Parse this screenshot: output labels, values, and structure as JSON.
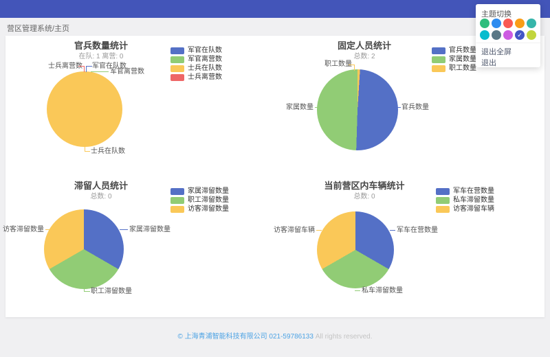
{
  "header": {
    "color": "#4355b9"
  },
  "breadcrumb": "营区管理系统/主页",
  "theme_panel": {
    "title": "主题切换",
    "colors": [
      "#2ebd7d",
      "#2e8cf0",
      "#f95a54",
      "#fa9d16",
      "#36b5aa",
      "#0abcce",
      "#5a7886",
      "#cd5ce2",
      "#4356c6",
      "#c2d53c"
    ],
    "selected_index": 8,
    "check_icon": "✓",
    "exit_fullscreen_label": "退出全屏",
    "logout_label": "退出"
  },
  "palette": {
    "blue": "#5470c6",
    "green": "#91cc75",
    "yellow": "#fac858",
    "red": "#ee6666"
  },
  "chart_data": [
    {
      "type": "pie",
      "title": "官兵数量统计",
      "subtitle": "在队: 1 离营: 0",
      "legend_position": "right",
      "series": [
        {
          "name": "军官在队数",
          "value": 0,
          "color": "#5470c6"
        },
        {
          "name": "军官离营数",
          "value": 0,
          "color": "#91cc75"
        },
        {
          "name": "士兵在队数",
          "value": 1,
          "color": "#fac858"
        },
        {
          "name": "士兵离营数",
          "value": 0,
          "color": "#ee6666"
        }
      ],
      "display_slices": [
        {
          "color": "#fac858",
          "pct": 100
        }
      ]
    },
    {
      "type": "pie",
      "title": "固定人员统计",
      "subtitle": "总数: 2",
      "legend_position": "right",
      "series": [
        {
          "name": "官兵数量",
          "value": 1,
          "color": "#5470c6"
        },
        {
          "name": "家属数量",
          "value": 1,
          "color": "#91cc75"
        },
        {
          "name": "职工数量",
          "value": 0,
          "color": "#fac858"
        }
      ],
      "display_slices": [
        {
          "color": "#fac858",
          "pct": 1
        },
        {
          "color": "#5470c6",
          "pct": 49.5
        },
        {
          "color": "#91cc75",
          "pct": 49.5
        }
      ]
    },
    {
      "type": "pie",
      "title": "滞留人员统计",
      "subtitle": "总数: 0",
      "legend_position": "right",
      "series": [
        {
          "name": "家属滞留数量",
          "value": 0,
          "color": "#5470c6"
        },
        {
          "name": "职工滞留数量",
          "value": 0,
          "color": "#91cc75"
        },
        {
          "name": "访客滞留数量",
          "value": 0,
          "color": "#fac858"
        }
      ],
      "display_slices": [
        {
          "color": "#5470c6",
          "pct": 33.34
        },
        {
          "color": "#91cc75",
          "pct": 33.33
        },
        {
          "color": "#fac858",
          "pct": 33.33
        }
      ]
    },
    {
      "type": "pie",
      "title": "当前营区内车辆统计",
      "subtitle": "总数: 0",
      "legend_position": "right",
      "series": [
        {
          "name": "军车在营数量",
          "value": 0,
          "color": "#5470c6"
        },
        {
          "name": "私车滞留数量",
          "value": 0,
          "color": "#91cc75"
        },
        {
          "name": "访客滞留车辆",
          "value": 0,
          "color": "#fac858"
        }
      ],
      "display_slices": [
        {
          "color": "#5470c6",
          "pct": 33.34
        },
        {
          "color": "#91cc75",
          "pct": 33.33
        },
        {
          "color": "#fac858",
          "pct": 33.33
        }
      ]
    }
  ],
  "footer": {
    "company": "© 上海青浦智能科技有限公司 021-59786133",
    "rights": "All rights reserved."
  }
}
